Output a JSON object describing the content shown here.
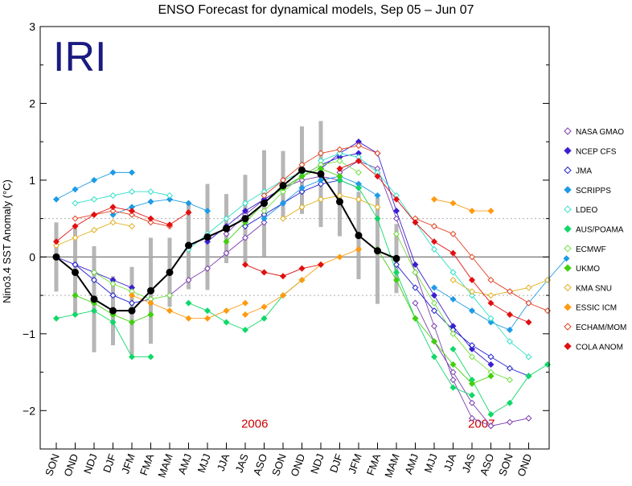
{
  "chart_data": {
    "type": "line",
    "title": "ENSO Forecast for dynamical models, Sep 05 – Jun 07",
    "ylabel": "Nino3.4 SST Anomaly (°C)",
    "xlabel": "",
    "ylim": [
      -2.5,
      3
    ],
    "y_ticks": [
      "3",
      "2",
      "1",
      "0",
      "−1",
      "−2"
    ],
    "reference_lines": [
      0.5,
      -0.5
    ],
    "categories": [
      "SON",
      "OND",
      "NDJ",
      "DJF",
      "JFM",
      "FMA",
      "MAM",
      "AMJ",
      "MJJ",
      "JJA",
      "JAS",
      "ASO",
      "SON",
      "OND",
      "NDJ",
      "DJF",
      "JFM",
      "FMA",
      "MAM",
      "AMJ",
      "MJJ",
      "JJA",
      "JAS",
      "ASO",
      "SON",
      "OND"
    ],
    "year_labels": [
      {
        "text": "2006",
        "at_category": 10.5,
        "y": -2.22
      },
      {
        "text": "2007",
        "at_category": 22.5,
        "y": -2.22
      }
    ],
    "logo": {
      "text": "IRI",
      "color": "#1a1a80"
    },
    "observed": {
      "name": "observed",
      "color": "#000000",
      "values": [
        0.0,
        -0.2,
        -0.55,
        -0.7,
        -0.7,
        -0.44,
        -0.2,
        0.15,
        0.26,
        0.37,
        0.5,
        0.7,
        0.93,
        1.13,
        1.08,
        0.72,
        0.28,
        0.08,
        -0.02
      ]
    },
    "series": [
      {
        "name": "NASA GMAO",
        "color": "#7b3fb0",
        "marker": "diamond-open",
        "runs": [
          [
            6,
            [
              -0.5,
              -0.3,
              -0.15,
              0.05,
              0.25,
              0.45
            ]
          ],
          [
            9,
            [
              0.3,
              0.55,
              0.75,
              0.9,
              1.0,
              1.05,
              1.0
            ]
          ],
          [
            15,
            [
              1.1,
              1.25,
              1.15,
              0.5,
              -0.2,
              -0.9,
              -1.6,
              -2.1,
              -2.2
            ]
          ],
          [
            19,
            [
              -0.6,
              -1.1,
              -1.5,
              -1.9,
              -2.2,
              -2.15,
              -2.1
            ]
          ]
        ]
      },
      {
        "name": "NCEP CFS",
        "color": "#3a1fd0",
        "marker": "diamond",
        "runs": [
          [
            0,
            [
              0.0,
              -0.1,
              -0.2,
              -0.3,
              -0.4
            ]
          ],
          [
            8,
            [
              0.2,
              0.4,
              0.6,
              0.75,
              0.9,
              1.05,
              1.2,
              1.3,
              1.35
            ]
          ],
          [
            14,
            [
              1.15,
              1.35,
              1.5,
              1.35,
              0.6,
              -0.1,
              -0.5,
              -0.9,
              -1.2,
              -1.4
            ]
          ]
        ]
      },
      {
        "name": "JMA",
        "color": "#1f1fcc",
        "marker": "diamond-open",
        "runs": [
          [
            1,
            [
              -0.1,
              -0.3,
              -0.5,
              -0.6,
              -0.55
            ]
          ],
          [
            10,
            [
              0.4,
              0.55,
              0.7,
              0.85,
              0.95,
              1.0,
              0.9
            ]
          ],
          [
            18,
            [
              -0.1,
              -0.4,
              -0.7,
              -0.95,
              -1.15,
              -1.3,
              -1.45,
              -1.55
            ]
          ]
        ]
      },
      {
        "name": "SCRIPPS",
        "color": "#1e9be6",
        "marker": "diamond",
        "runs": [
          [
            0,
            [
              0.75,
              0.88,
              1.0,
              1.1,
              1.1
            ]
          ],
          [
            3,
            [
              0.55,
              0.65,
              0.72,
              0.75,
              0.7,
              0.6
            ]
          ],
          [
            11,
            [
              0.5,
              0.7,
              0.9,
              1.0,
              1.05,
              0.95,
              0.8
            ]
          ],
          [
            20,
            [
              -0.4,
              -0.55,
              -0.7,
              -0.85,
              -0.95,
              -0.6,
              -0.3,
              -0.02
            ]
          ]
        ]
      },
      {
        "name": "LDEO",
        "color": "#30e0c8",
        "marker": "diamond-open",
        "runs": [
          [
            1,
            [
              0.7,
              0.75,
              0.8,
              0.85,
              0.85,
              0.8
            ]
          ],
          [
            7,
            [
              0.1,
              0.3,
              0.5,
              0.7,
              0.85,
              1.0,
              1.1
            ]
          ],
          [
            14,
            [
              1.25,
              1.35,
              1.3,
              1.1,
              0.8,
              0.45,
              0.1,
              -0.2,
              -0.5,
              -0.8,
              -1.1,
              -1.3
            ]
          ]
        ]
      },
      {
        "name": "AUS/POAMA",
        "color": "#10d868",
        "marker": "diamond",
        "runs": [
          [
            0,
            [
              -0.8,
              -0.75,
              -0.7,
              -0.85,
              -1.3,
              -1.3
            ]
          ],
          [
            7,
            [
              -0.6,
              -0.7,
              -0.85,
              -0.95,
              -0.8,
              -0.5,
              -0.3
            ]
          ],
          [
            15,
            [
              1.0,
              0.9,
              0.5,
              -0.2,
              -0.8,
              -1.3,
              -1.7,
              -1.8
            ]
          ],
          [
            21,
            [
              -1.2,
              -1.6,
              -2.05,
              -1.9,
              -1.55,
              -1.4
            ]
          ]
        ]
      },
      {
        "name": "ECMWF",
        "color": "#70e040",
        "marker": "diamond-open",
        "runs": [
          [
            2,
            [
              -0.2,
              -0.35,
              -0.45,
              -0.55,
              -0.5
            ]
          ],
          [
            11,
            [
              0.6,
              0.85,
              1.05,
              1.2,
              1.25,
              1.1
            ]
          ],
          [
            18,
            [
              0.3,
              -0.2,
              -0.6,
              -1.0,
              -1.3,
              -1.5,
              -1.6
            ]
          ]
        ]
      },
      {
        "name": "UKMO",
        "color": "#40d010",
        "marker": "diamond",
        "runs": [
          [
            1,
            [
              -0.5,
              -0.6,
              -0.75,
              -0.85,
              -0.75
            ]
          ],
          [
            9,
            [
              0.2,
              0.45,
              0.7,
              0.9,
              1.05,
              1.15,
              1.05
            ]
          ],
          [
            17,
            [
              0.1,
              -0.3,
              -0.8,
              -1.1,
              -1.4,
              -1.65,
              -1.55
            ]
          ]
        ]
      },
      {
        "name": "KMA SNU",
        "color": "#e0b020",
        "marker": "diamond-open",
        "runs": [
          [
            0,
            [
              0.15,
              0.25,
              0.35,
              0.45,
              0.4
            ]
          ],
          [
            12,
            [
              0.5,
              0.65,
              0.75,
              0.8,
              0.75,
              0.65
            ]
          ],
          [
            21,
            [
              -0.3,
              -0.45,
              -0.5,
              -0.45,
              -0.4,
              -0.3
            ]
          ]
        ]
      },
      {
        "name": "ESSIC ICM",
        "color": "#ff9a10",
        "marker": "diamond",
        "runs": [
          [
            4,
            [
              -0.5,
              -0.6,
              -0.7,
              -0.8,
              -0.8,
              -0.7,
              -0.6
            ]
          ],
          [
            10,
            [
              -0.75,
              -0.65,
              -0.5,
              -0.3,
              -0.1,
              0.0,
              0.1
            ]
          ],
          [
            20,
            [
              0.75,
              0.7,
              0.6,
              0.6
            ]
          ]
        ]
      },
      {
        "name": "ECHAM/MOM",
        "color": "#e04020",
        "marker": "diamond-open",
        "runs": [
          [
            1,
            [
              0.5,
              0.55,
              0.6,
              0.55,
              0.45,
              0.4
            ]
          ],
          [
            11,
            [
              0.8,
              1.0,
              1.2,
              1.35,
              1.4,
              1.45,
              1.35
            ]
          ],
          [
            19,
            [
              0.5,
              0.4,
              0.3,
              0.0,
              -0.3,
              -0.45,
              -0.6,
              -0.7
            ]
          ]
        ]
      },
      {
        "name": "COLA ANOM",
        "color": "#e01010",
        "marker": "diamond",
        "runs": [
          [
            0,
            [
              0.2,
              0.4,
              0.55,
              0.65,
              0.6,
              0.5,
              0.42,
              0.58
            ]
          ],
          [
            10,
            [
              -0.1,
              -0.2,
              -0.25,
              -0.15,
              -0.1
            ]
          ],
          [
            15,
            [
              1.15,
              1.25,
              1.05,
              0.75,
              0.45,
              0.2,
              0.05,
              -0.3,
              -0.6,
              -0.75,
              -0.85
            ]
          ]
        ]
      }
    ]
  }
}
